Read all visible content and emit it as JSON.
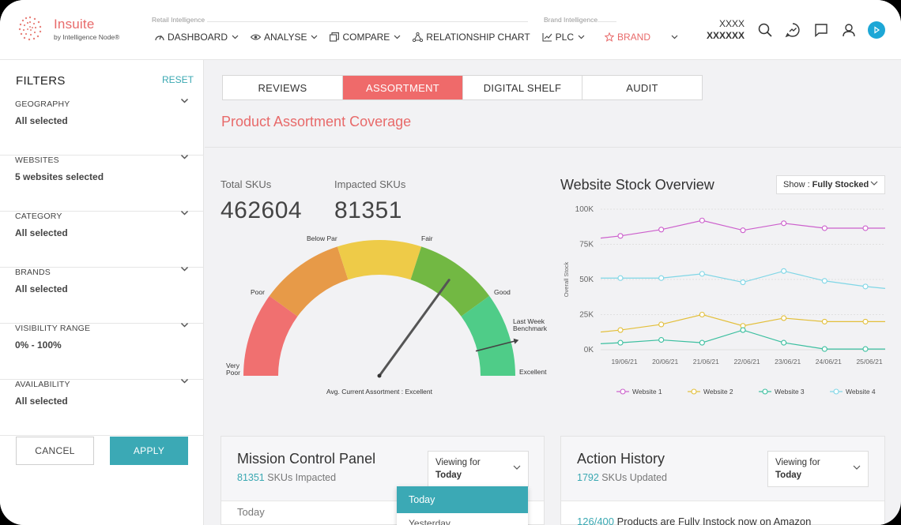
{
  "header": {
    "brand_name": "Insuite",
    "brand_sub": "by Intelligence Node®",
    "retail_label": "Retail Intelligence",
    "brand_intel_label": "Brand Intelligence",
    "nav": [
      "DASHBOARD",
      "ANALYSE",
      "COMPARE",
      "RELATIONSHIP CHART",
      "PLC",
      "BRAND"
    ],
    "user_line1": "XXXX",
    "user_line2": "XXXXXX",
    "accent": "#e86a6a",
    "teal": "#3ba9b5"
  },
  "sidebar": {
    "title": "FILTERS",
    "reset": "RESET",
    "groups": [
      {
        "label": "GEOGRAPHY",
        "value": "All selected"
      },
      {
        "label": "WEBSITES",
        "value": "5 websites selected"
      },
      {
        "label": "CATEGORY",
        "value": "All selected"
      },
      {
        "label": "BRANDS",
        "value": "All selected"
      },
      {
        "label": "VISIBILITY RANGE",
        "value": "0% - 100%"
      },
      {
        "label": "AVAILABILITY",
        "value": "All selected"
      }
    ],
    "cancel": "CANCEL",
    "apply": "APPLY"
  },
  "tabs": [
    "REVIEWS",
    "ASSORTMENT",
    "DIGITAL SHELF",
    "AUDIT"
  ],
  "active_tab": "ASSORTMENT",
  "page_title": "Product Assortment Coverage",
  "kpis": {
    "total_label": "Total SKUs",
    "total_value": "462604",
    "impacted_label": "Impacted SKUs",
    "impacted_value": "81351"
  },
  "gauge": {
    "bands": [
      {
        "label": "Very Poor",
        "color": "#f07070"
      },
      {
        "label": "Poor",
        "color": "#e79a48"
      },
      {
        "label": "Below Par",
        "color": "#eecb48"
      },
      {
        "label": "Fair",
        "color": "#72b843"
      },
      {
        "label": "Good",
        "color": "#4fcc88"
      }
    ],
    "label_very_poor_1": "Very",
    "label_very_poor_2": "Poor",
    "label_poor": "Poor",
    "label_below_par": "Below Par",
    "label_fair": "Fair",
    "label_good": "Good",
    "label_excellent": "Excellent",
    "benchmark_1": "Last Week",
    "benchmark_2": "Benchmark",
    "caption": "Avg. Current Assortment : Excellent",
    "needle_value": 0.7,
    "benchmark_value": 0.92
  },
  "stock_chart": {
    "title": "Website Stock Overview",
    "show_label": "Show :",
    "show_value": "Fully Stocked"
  },
  "chart_data": {
    "type": "line",
    "title": "Website Stock Overview",
    "ylabel": "Overall Stock",
    "x": [
      "19/06/21",
      "20/06/21",
      "21/06/21",
      "22/06/21",
      "23/06/21",
      "24/06/21",
      "25/06/21"
    ],
    "yticks": [
      "0K",
      "25K",
      "50K",
      "75K",
      "100K"
    ],
    "ylim": [
      0,
      100000
    ],
    "series": [
      {
        "name": "Website 1",
        "color": "#cc5fcc",
        "values": [
          81000,
          85500,
          92000,
          85000,
          90000,
          86500,
          86500
        ]
      },
      {
        "name": "Website 2",
        "color": "#e3bf3a",
        "values": [
          14000,
          18000,
          25000,
          17000,
          22500,
          20000,
          20000
        ]
      },
      {
        "name": "Website 3",
        "color": "#3bbf9f",
        "values": [
          5000,
          7000,
          5000,
          14000,
          5000,
          500,
          500
        ]
      },
      {
        "name": "Website 4",
        "color": "#7fd6e6",
        "values": [
          51000,
          51000,
          54000,
          48000,
          56000,
          49000,
          45000
        ]
      }
    ],
    "legend_position": "bottom",
    "grid": true
  },
  "mission": {
    "title": "Mission Control Panel",
    "count": "81351",
    "count_suffix": "SKUs Impacted",
    "viewing_label": "Viewing for",
    "viewing_value": "Today",
    "row_label": "Today",
    "dropdown_opt1": "Today",
    "dropdown_opt2": "Yesterday"
  },
  "action": {
    "title": "Action History",
    "count": "1792",
    "count_suffix": "SKUs Updated",
    "viewing_label": "Viewing for",
    "viewing_value": "Today",
    "row_num": "126",
    "row_total": "/400",
    "row_text": "Products are Fully Instock now on Amazon"
  }
}
